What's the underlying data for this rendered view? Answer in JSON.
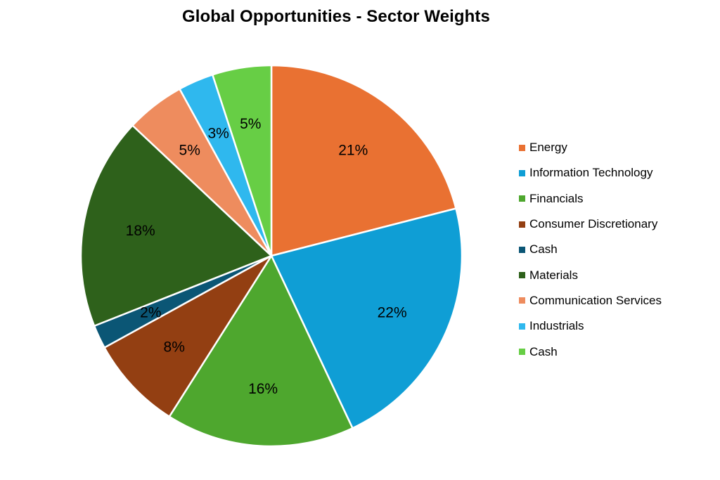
{
  "chart_data": {
    "type": "pie",
    "title": "Global Opportunities - Sector Weights",
    "labels": [
      "Energy",
      "Information Technology",
      "Financials",
      "Consumer Discretionary",
      "Cash",
      "Materials",
      "Communication Services",
      "Industrials",
      "Cash"
    ],
    "values": [
      21,
      22,
      16,
      8,
      2,
      18,
      5,
      3,
      5
    ],
    "data_labels": [
      "21%",
      "22%",
      "16%",
      "8%",
      "2%",
      "18%",
      "5%",
      "3%",
      "5%"
    ],
    "colors": [
      "#E97132",
      "#0F9ED5",
      "#4EA72E",
      "#933F12",
      "#0B5675",
      "#2E611B",
      "#EE8C5E",
      "#2FB8EE",
      "#67CE45"
    ],
    "legend_position": "right",
    "start_angle_deg": 0,
    "direction": "clockwise"
  }
}
